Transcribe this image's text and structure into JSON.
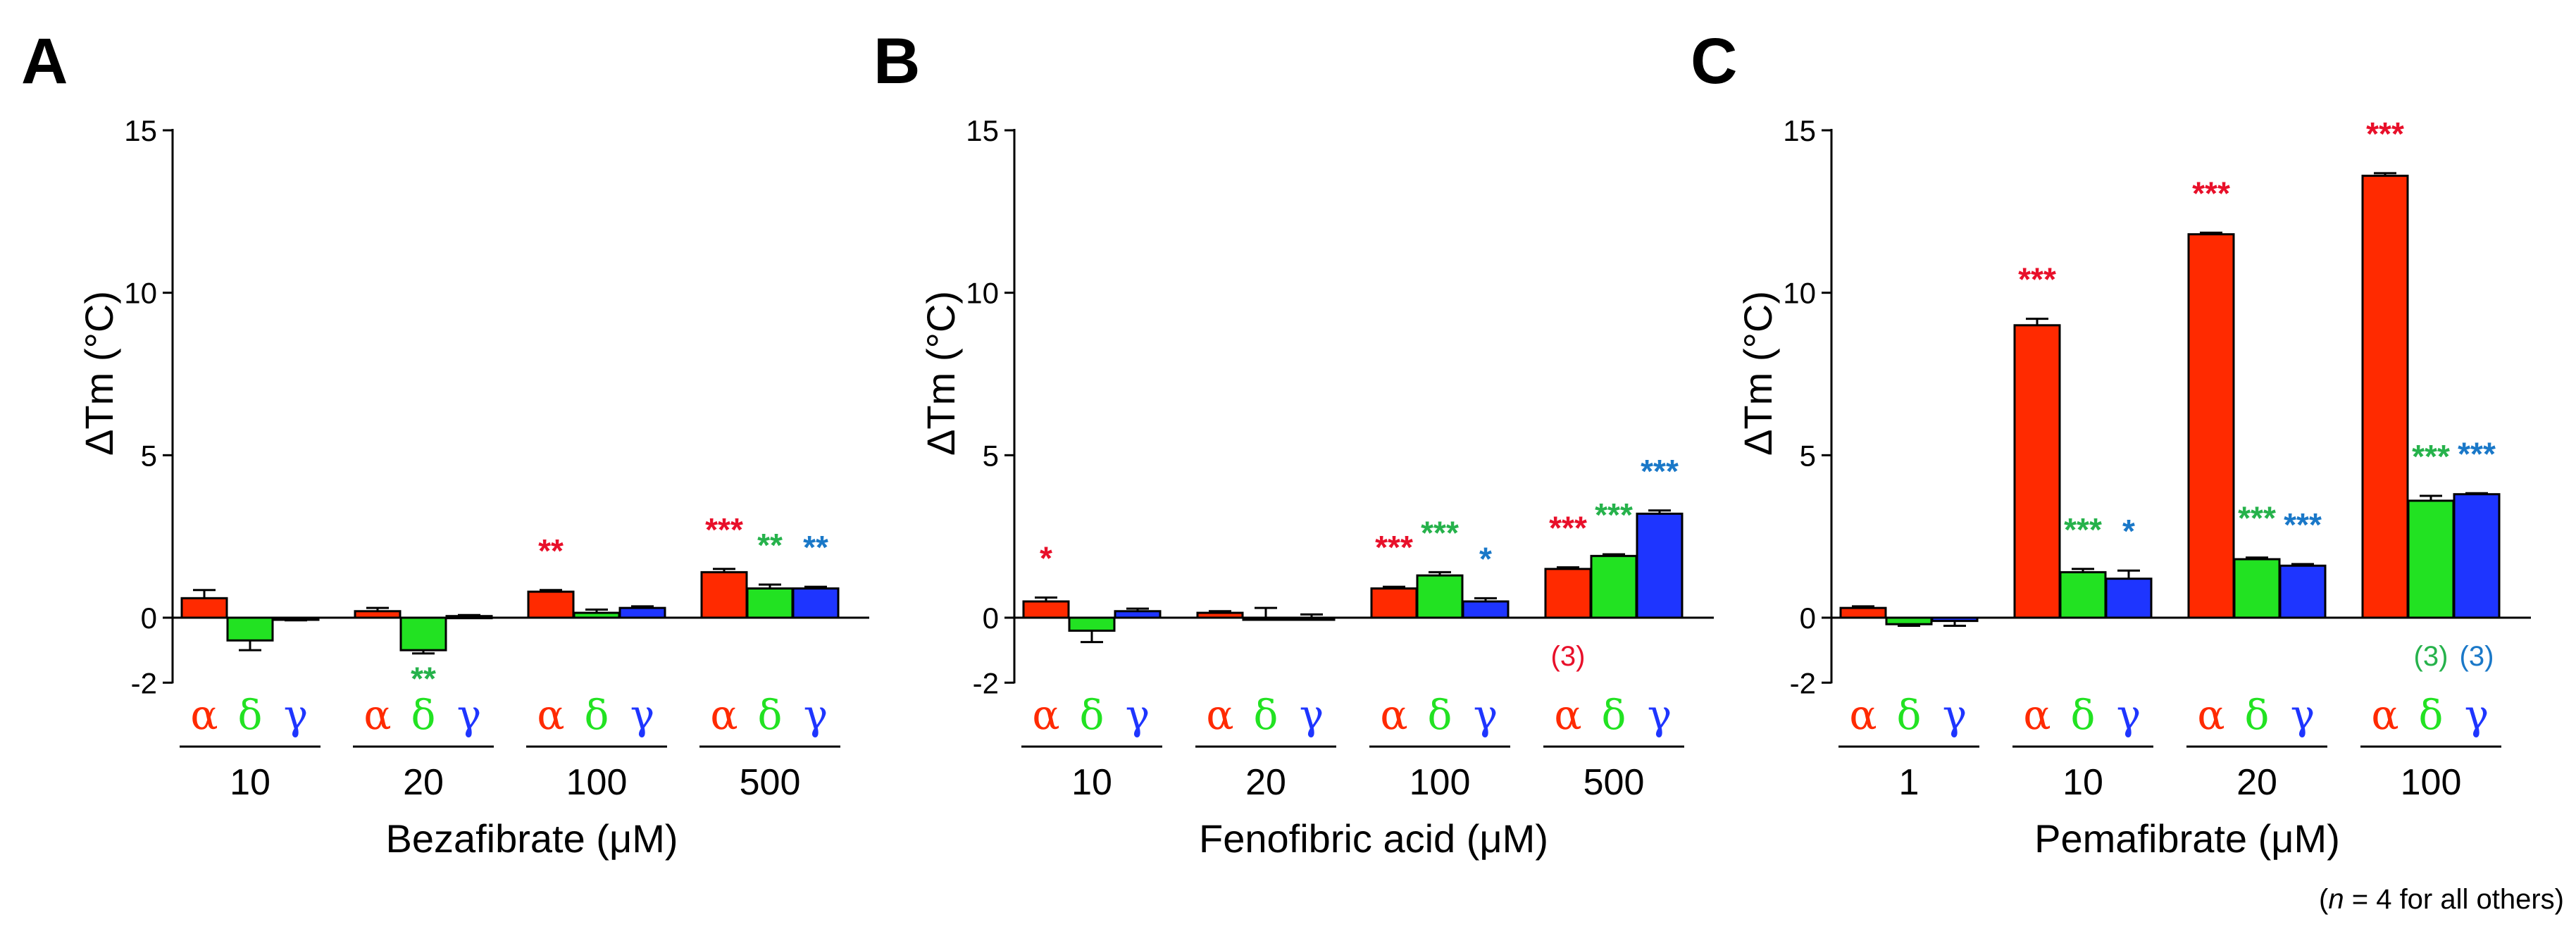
{
  "colors": {
    "alpha": "#ff2a00",
    "delta": "#22e222",
    "gamma": "#1e35ff",
    "sig_alpha": "#e8102a",
    "sig_delta": "#26b24b",
    "sig_gamma": "#1a78c8"
  },
  "receptor_labels": [
    "α",
    "δ",
    "γ"
  ],
  "footnote": {
    "open": "(",
    "n": "n",
    "rest": " = 4 for all others)"
  },
  "chart_data": [
    {
      "type": "bar",
      "panel": "A",
      "ylabel": "ΔTm (°C)",
      "xlabel": "Bezafibrate (μM)",
      "ylim": [
        -2,
        15
      ],
      "yticks": [
        "-2",
        "0",
        "5",
        "10",
        "15"
      ],
      "categories": [
        "10",
        "20",
        "100",
        "500"
      ],
      "series": [
        {
          "name": "α",
          "values": [
            0.6,
            0.2,
            0.8,
            1.4
          ],
          "errors": [
            0.25,
            0.1,
            0.05,
            0.1
          ],
          "sig": [
            "",
            "",
            "**",
            "***"
          ],
          "n": [
            "",
            "",
            "",
            ""
          ]
        },
        {
          "name": "δ",
          "values": [
            -0.7,
            -1.0,
            0.15,
            0.9
          ],
          "errors": [
            0.3,
            0.1,
            0.1,
            0.12
          ],
          "sig": [
            "",
            "**",
            "",
            "**"
          ],
          "n": [
            "",
            "",
            "",
            ""
          ]
        },
        {
          "name": "γ",
          "values": [
            -0.05,
            0.05,
            0.3,
            0.9
          ],
          "errors": [
            0.03,
            0.03,
            0.05,
            0.05
          ],
          "sig": [
            "",
            "",
            "",
            "**"
          ],
          "n": [
            "",
            "",
            "",
            ""
          ]
        }
      ]
    },
    {
      "type": "bar",
      "panel": "B",
      "ylabel": "ΔTm (°C)",
      "xlabel": "Fenofibric acid (μM)",
      "ylim": [
        -2,
        15
      ],
      "yticks": [
        "-2",
        "0",
        "5",
        "10",
        "15"
      ],
      "categories": [
        "10",
        "20",
        "100",
        "500"
      ],
      "series": [
        {
          "name": "α",
          "values": [
            0.5,
            0.15,
            0.9,
            1.5
          ],
          "errors": [
            0.12,
            0.05,
            0.05,
            0.05
          ],
          "sig": [
            "*",
            "",
            "***",
            "***"
          ],
          "n": [
            "",
            "",
            "",
            "(3)"
          ]
        },
        {
          "name": "δ",
          "values": [
            -0.4,
            0.0,
            1.3,
            1.9
          ],
          "errors": [
            0.35,
            0.3,
            0.1,
            0.05
          ],
          "sig": [
            "",
            "",
            "***",
            "***"
          ],
          "n": [
            "",
            "",
            "",
            ""
          ]
        },
        {
          "name": "γ",
          "values": [
            0.2,
            0.0,
            0.5,
            3.2
          ],
          "errors": [
            0.08,
            0.1,
            0.1,
            0.1
          ],
          "sig": [
            "",
            "",
            "*",
            "***"
          ],
          "n": [
            "",
            "",
            "",
            ""
          ]
        }
      ]
    },
    {
      "type": "bar",
      "panel": "C",
      "ylabel": "ΔTm (°C)",
      "xlabel": "Pemafibrate (μM)",
      "ylim": [
        -2,
        15
      ],
      "yticks": [
        "-2",
        "0",
        "5",
        "10",
        "15"
      ],
      "categories": [
        "1",
        "10",
        "20",
        "100"
      ],
      "series": [
        {
          "name": "α",
          "values": [
            0.3,
            9.0,
            11.8,
            13.6
          ],
          "errors": [
            0.05,
            0.2,
            0.05,
            0.08
          ],
          "sig": [
            "",
            "***",
            "***",
            "***"
          ],
          "n": [
            "",
            "",
            "",
            ""
          ]
        },
        {
          "name": "δ",
          "values": [
            -0.2,
            1.4,
            1.8,
            3.6
          ],
          "errors": [
            0.05,
            0.1,
            0.05,
            0.15
          ],
          "sig": [
            "",
            "***",
            "***",
            "***"
          ],
          "n": [
            "",
            "",
            "",
            "(3)"
          ]
        },
        {
          "name": "γ",
          "values": [
            -0.1,
            1.2,
            1.6,
            3.8
          ],
          "errors": [
            0.15,
            0.25,
            0.05,
            0.03
          ],
          "sig": [
            "",
            "*",
            "***",
            "***"
          ],
          "n": [
            "",
            "",
            "",
            "(3)"
          ]
        }
      ]
    }
  ]
}
